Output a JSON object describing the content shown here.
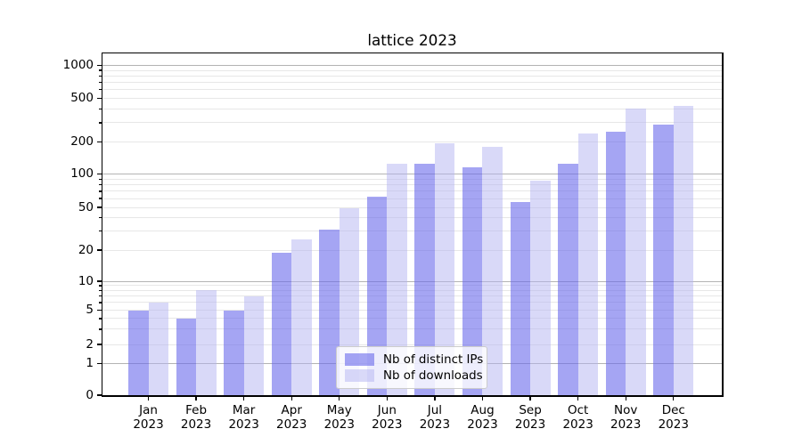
{
  "chart_data": {
    "type": "bar",
    "title": "lattice 2023",
    "x_tick_months": [
      "Jan",
      "Feb",
      "Mar",
      "Apr",
      "May",
      "Jun",
      "Jul",
      "Aug",
      "Sep",
      "Oct",
      "Nov",
      "Dec"
    ],
    "x_tick_year": "2023",
    "categories": [
      "Jan 2023",
      "Feb 2023",
      "Mar 2023",
      "Apr 2023",
      "May 2023",
      "Jun 2023",
      "Jul 2023",
      "Aug 2023",
      "Sep 2023",
      "Oct 2023",
      "Nov 2023",
      "Dec 2023"
    ],
    "series": [
      {
        "name": "Nb of distinct IPs",
        "color": "rgba(105,105,235,0.6)",
        "values": [
          5,
          4,
          5,
          19,
          31,
          63,
          125,
          115,
          56,
          124,
          250,
          290
        ]
      },
      {
        "name": "Nb of downloads",
        "color": "rgba(180,180,242,0.5)",
        "values": [
          6,
          8,
          7,
          25,
          49,
          126,
          195,
          180,
          87,
          240,
          400,
          425
        ]
      }
    ],
    "y_ticks": [
      0,
      1,
      2,
      5,
      10,
      20,
      50,
      100,
      200,
      500,
      1000
    ],
    "y_minor_ticks": [
      3,
      4,
      6,
      7,
      8,
      9,
      30,
      40,
      60,
      70,
      80,
      90,
      300,
      400,
      600,
      700,
      800,
      900
    ],
    "y_major_gridlines": [
      1,
      10,
      100,
      1000
    ],
    "y_scale": "log-like (linear below 1)",
    "ylim": [
      0,
      1300
    ],
    "grid": true,
    "xlabel": "",
    "ylabel": "",
    "legend_position": "lower center inside plot"
  },
  "colors": {
    "ips_bar": "rgba(105,105,235,0.6)",
    "downloads_bar": "rgba(180,180,242,0.5)",
    "major_grid": "#b3b3b3",
    "minor_grid": "#e7e7e7",
    "spine": "#000000",
    "legend_border": "#cccccc"
  }
}
